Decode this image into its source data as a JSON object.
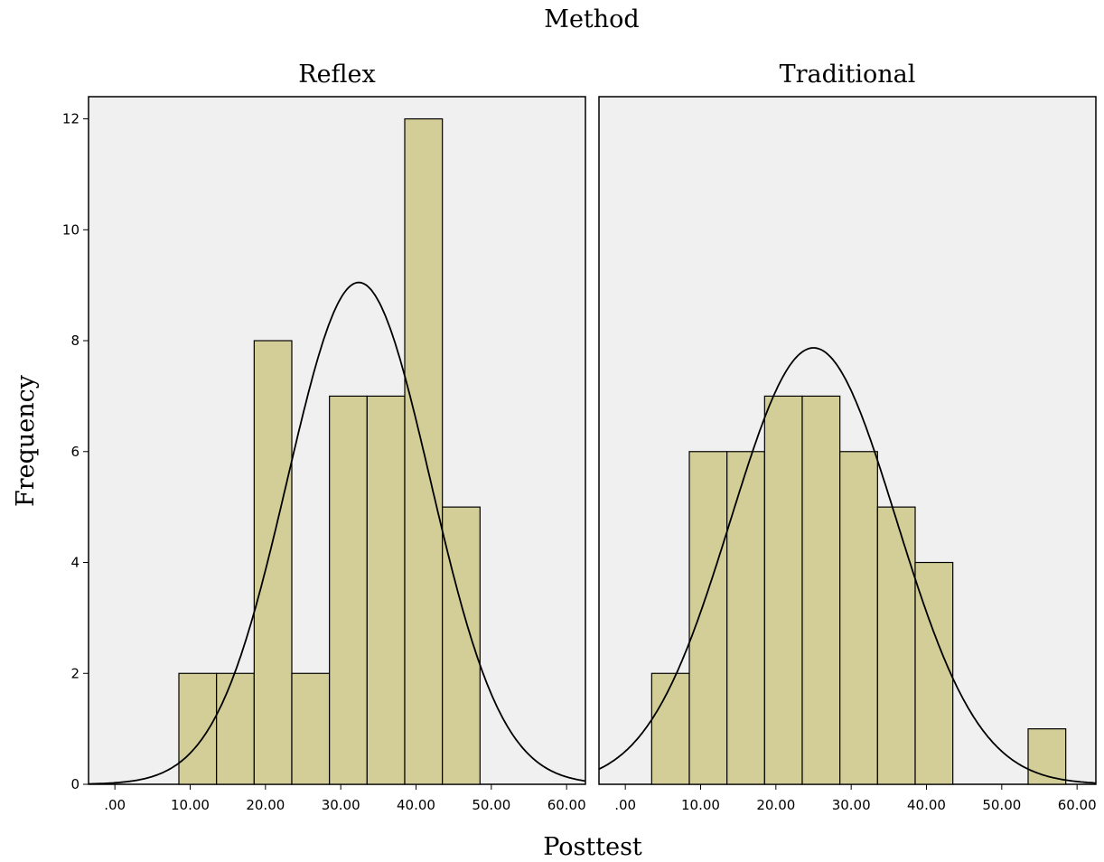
{
  "chart_data": {
    "type": "bar",
    "title": "Method",
    "xlabel": "Posttest",
    "ylabel": "Frequency",
    "xlim": [
      -3.5,
      62.5
    ],
    "ylim": [
      0,
      12.4
    ],
    "x_ticks": [
      0,
      10,
      20,
      30,
      40,
      50,
      60
    ],
    "x_tick_labels": [
      ".00",
      "10.00",
      "20.00",
      "30.00",
      "40.00",
      "50.00",
      "60.00"
    ],
    "y_ticks": [
      0,
      2,
      4,
      6,
      8,
      10,
      12
    ],
    "y_tick_labels": [
      "0",
      "2",
      "4",
      "6",
      "8",
      "10",
      "12"
    ],
    "bar_color": "#d3ce97",
    "panel_background": "#f0f0f0",
    "grid": false,
    "panels": [
      {
        "label": "Reflex",
        "bins": [
          {
            "x0": 8.5,
            "x1": 13.5,
            "count": 2
          },
          {
            "x0": 13.5,
            "x1": 18.5,
            "count": 2
          },
          {
            "x0": 18.5,
            "x1": 23.5,
            "count": 8
          },
          {
            "x0": 23.5,
            "x1": 28.5,
            "count": 2
          },
          {
            "x0": 28.5,
            "x1": 33.5,
            "count": 7
          },
          {
            "x0": 33.5,
            "x1": 38.5,
            "count": 7
          },
          {
            "x0": 38.5,
            "x1": 43.5,
            "count": 12
          },
          {
            "x0": 43.5,
            "x1": 48.5,
            "count": 5
          }
        ],
        "normal_curve": {
          "mean": 32.4,
          "sd": 9.5,
          "peak": 9.05
        }
      },
      {
        "label": "Traditional",
        "bins": [
          {
            "x0": 3.5,
            "x1": 8.5,
            "count": 2
          },
          {
            "x0": 8.5,
            "x1": 13.5,
            "count": 6
          },
          {
            "x0": 13.5,
            "x1": 18.5,
            "count": 6
          },
          {
            "x0": 18.5,
            "x1": 23.5,
            "count": 7
          },
          {
            "x0": 23.5,
            "x1": 28.5,
            "count": 7
          },
          {
            "x0": 28.5,
            "x1": 33.5,
            "count": 6
          },
          {
            "x0": 33.5,
            "x1": 38.5,
            "count": 5
          },
          {
            "x0": 38.5,
            "x1": 43.5,
            "count": 4
          },
          {
            "x0": 53.5,
            "x1": 58.5,
            "count": 1
          }
        ],
        "normal_curve": {
          "mean": 25.0,
          "sd": 11.0,
          "peak": 7.87
        }
      }
    ]
  }
}
